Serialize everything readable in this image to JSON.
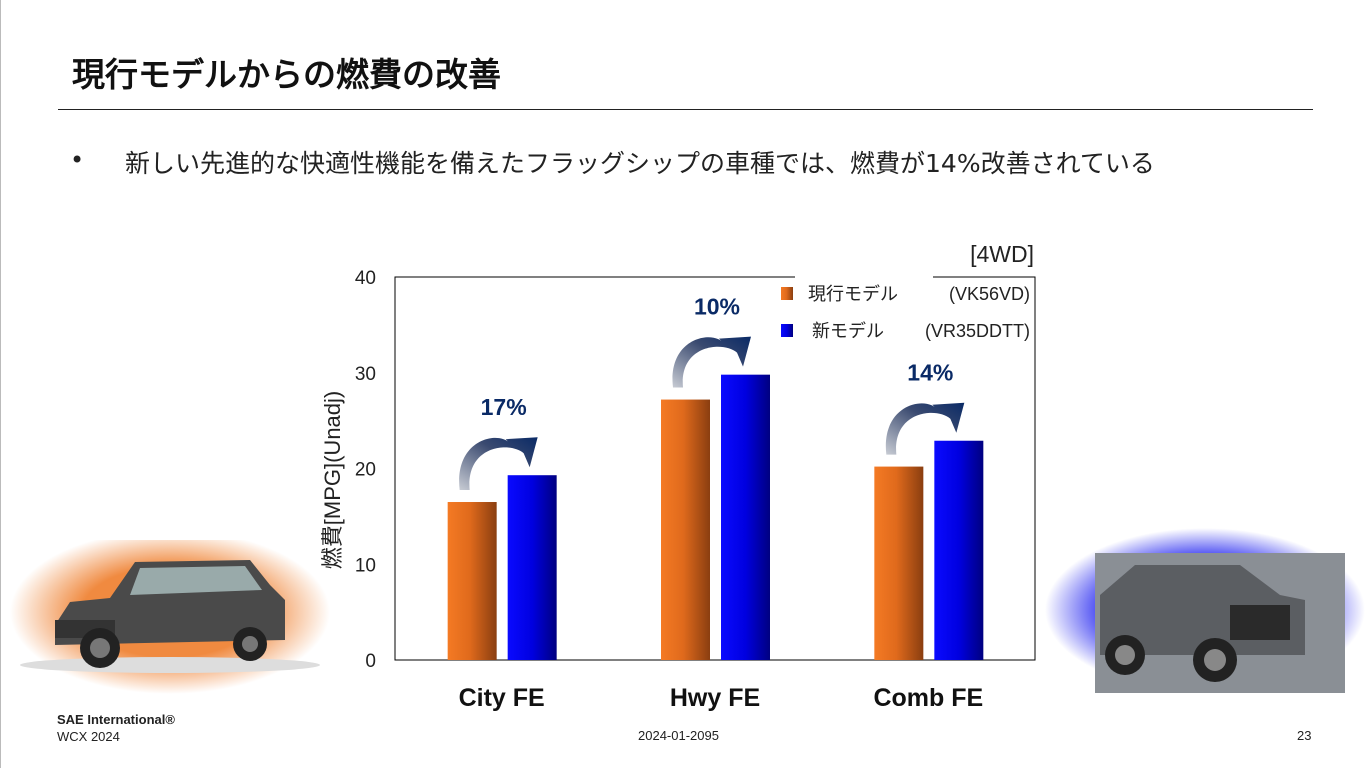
{
  "slide": {
    "title": "現行モデルからの燃費の改善",
    "bullet_marker": "•",
    "bullet": "新しい先進的な快適性機能を備えたフラッグシップの車種では、燃費が14%改善されている",
    "footer": {
      "org": "SAE International®",
      "event": "WCX 2024",
      "paper_id": "2024-01-2095",
      "page": "23"
    },
    "images": [
      {
        "name": "current-model-car",
        "glow_color": "#f08a40"
      },
      {
        "name": "new-model-car",
        "glow_color": "#2a2cf0"
      }
    ]
  },
  "chart_data": {
    "type": "bar",
    "annotation_top_right": "[4WD]",
    "ylabel": "燃費[MPG](Unadj)",
    "ylim": [
      0,
      40
    ],
    "yticks": [
      "0",
      "10",
      "20",
      "30",
      "40"
    ],
    "grid": false,
    "legend_placement": "top-right",
    "categories": [
      "City FE",
      "Hwy FE",
      "Comb FE"
    ],
    "series": [
      {
        "name": "現行モデル",
        "code": "(VK56VD)",
        "color": "#f07820",
        "values": [
          16.5,
          27.2,
          20.2
        ]
      },
      {
        "name": "新モデル",
        "code": "(VR35DDTT)",
        "color": "#0000f0",
        "values": [
          19.3,
          29.8,
          22.9
        ]
      }
    ],
    "improvement_labels": [
      "17%",
      "10%",
      "14%"
    ],
    "label_color": "#0a2a66"
  }
}
